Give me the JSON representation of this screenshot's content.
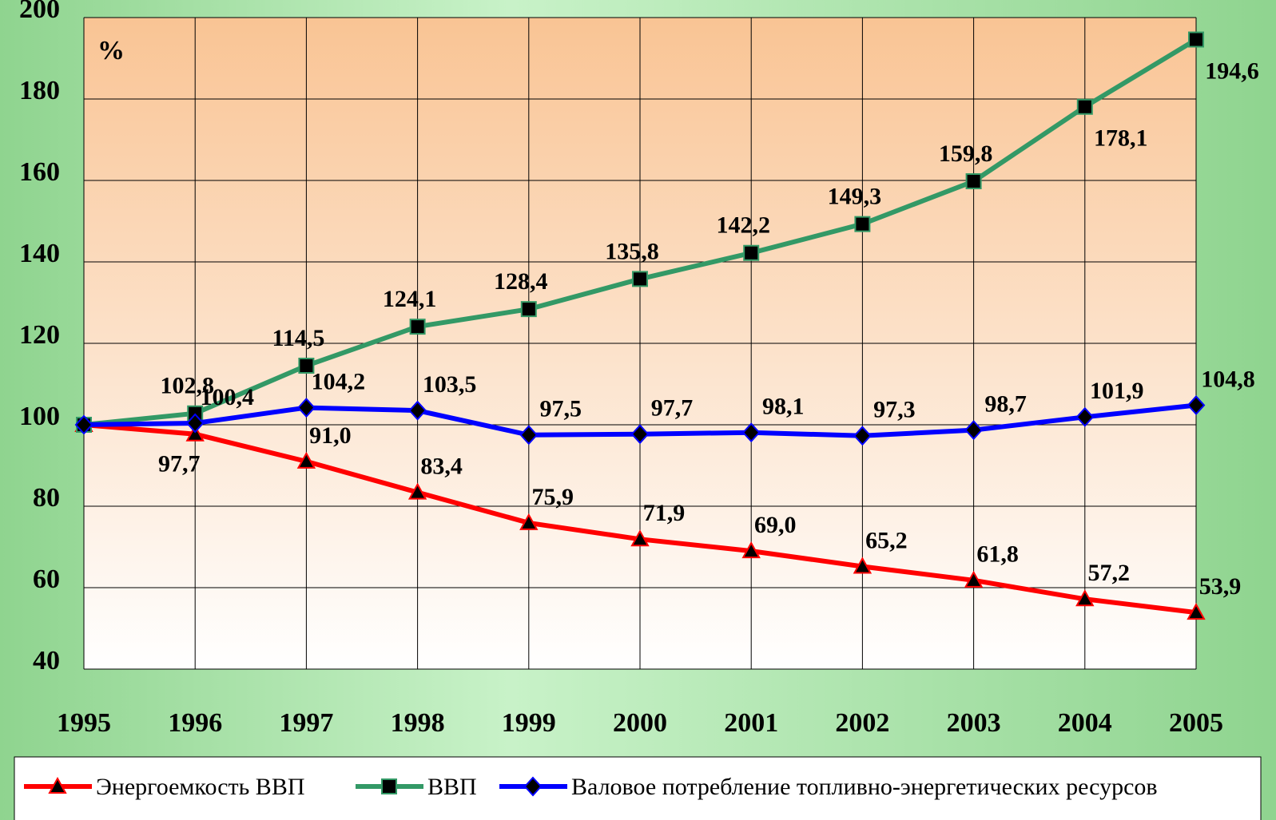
{
  "chart_data": {
    "type": "line",
    "annotation": "%",
    "x": [
      1995,
      1996,
      1997,
      1998,
      1999,
      2000,
      2001,
      2002,
      2003,
      2004,
      2005
    ],
    "xlim": [
      1995,
      2005
    ],
    "ylim": [
      40,
      200
    ],
    "yticks": [
      40,
      60,
      80,
      100,
      120,
      140,
      160,
      180,
      200
    ],
    "grid": true,
    "legend": "bottom",
    "series": [
      {
        "name": "Энергоемкость ВВП",
        "color": "#ff0000",
        "marker": "triangle",
        "values": [
          100,
          97.7,
          91.0,
          83.4,
          75.9,
          71.9,
          69.0,
          65.2,
          61.8,
          57.2,
          53.9
        ],
        "value_labels": [
          null,
          "97,7",
          "91,0",
          "83,4",
          "75,9",
          "71,9",
          "69,0",
          "65,2",
          "61,8",
          "57,2",
          "53,9"
        ]
      },
      {
        "name": "ВВП",
        "color": "#339966",
        "marker": "square",
        "values": [
          100,
          102.8,
          114.5,
          124.1,
          128.4,
          135.8,
          142.2,
          149.3,
          159.8,
          178.1,
          194.6
        ],
        "value_labels": [
          null,
          "102,8",
          "114,5",
          "124,1",
          "128,4",
          "135,8",
          "142,2",
          "149,3",
          "159,8",
          "178,1",
          "194,6"
        ]
      },
      {
        "name": "Валовое потребление топливно-энергетических ресурсов",
        "color": "#0000ff",
        "marker": "diamond",
        "values": [
          100,
          100.4,
          104.2,
          103.5,
          97.5,
          97.7,
          98.1,
          97.3,
          98.7,
          101.9,
          104.8
        ],
        "value_labels": [
          null,
          "100,4",
          "104,2",
          "103,5",
          "97,5",
          "97,7",
          "98,1",
          "97,3",
          "98,7",
          "101,9",
          "104,8"
        ]
      }
    ]
  }
}
